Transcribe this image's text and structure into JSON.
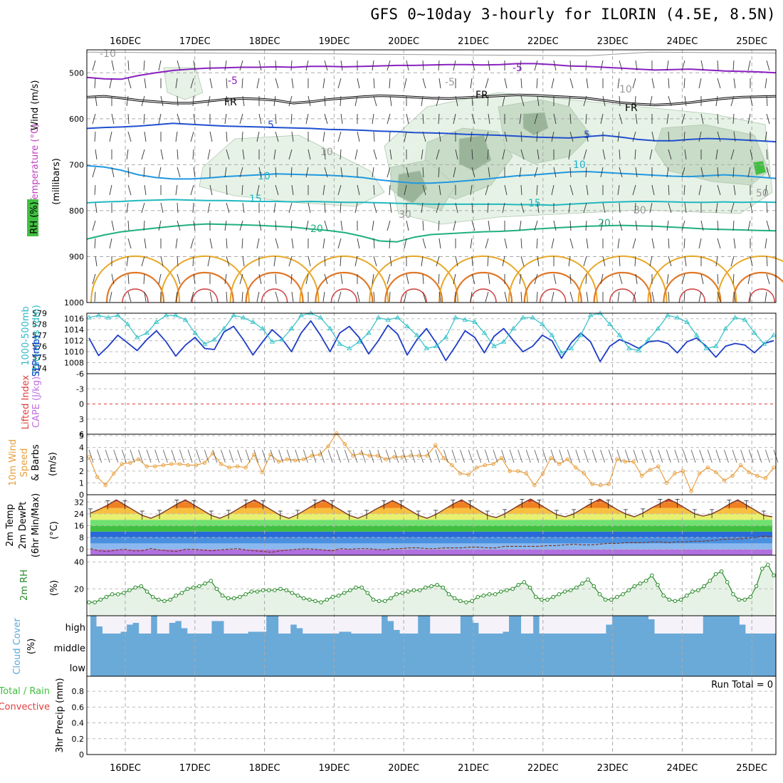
{
  "title": "GFS 0~10day 3-hourly for ILORIN (4.5E, 8.5N)",
  "dates": [
    "16DEC",
    "17DEC",
    "18DEC",
    "19DEC",
    "20DEC",
    "21DEC",
    "22DEC",
    "23DEC",
    "24DEC",
    "25DEC"
  ],
  "panel_labels": {
    "upper_wind": "Wind (m/s)",
    "upper_temp": "Temperature (°C)",
    "upper_units": "(millibars)",
    "upper_rh": "RH (%)",
    "slp": "SLP (mb)",
    "thickness": "Thickness (dm)",
    "thickness2": "1000-500mb",
    "li": "Lifted Index",
    "cape": "CAPE (J/kg)",
    "wind10_a": "10m Wind",
    "wind10_b": "Speed",
    "wind10_c": "& Barbs",
    "wind10_units": "(m/s)",
    "t2m_a": "2m Temp",
    "t2m_b": "2m DewPt",
    "t2m_c": "(6hr Min/Max)",
    "t2m_units": "(°C)",
    "rh2m": "2m RH",
    "rh2m_units": "(%)",
    "cloud": "Cloud Cover",
    "cloud_units": "(%)",
    "cloud_high": "high",
    "cloud_middle": "middle",
    "cloud_low": "low",
    "precip_a": "Total / Rain",
    "precip_b": "Convective",
    "precip_c": "3hr Precip (mm)",
    "run_total": "Run Total = 0"
  },
  "colors": {
    "temperature": "#a020f0",
    "slp": "#1e3cc8",
    "thickness": "#30c0c8",
    "wind10": "#e8a040",
    "rh2m": "#2a8a2a",
    "cloud": "#6aaad8",
    "li": "#e04040",
    "cape": "#c070e0"
  },
  "chart_data": [
    {
      "type": "line",
      "name": "upper-air",
      "xlabel": "",
      "ylabel": "millibars",
      "yticks": [
        500,
        600,
        700,
        800,
        900,
        1000
      ],
      "contour_labels": [
        "-10",
        "-5",
        "-5",
        "FR",
        "FR",
        "FR",
        "-5",
        "5",
        "5",
        "10",
        "10",
        "15",
        "15",
        "20",
        "20",
        "10",
        "10",
        "30",
        "30",
        "50"
      ],
      "series": [
        {
          "name": "-5",
          "mb": [
            510,
            513,
            514,
            506,
            500,
            495,
            492,
            490,
            489,
            488,
            488,
            487,
            488,
            486,
            486,
            487,
            486,
            485,
            484,
            484,
            483,
            482,
            482,
            483,
            482,
            480,
            480,
            482,
            485,
            486,
            488,
            490,
            492,
            494,
            493,
            492,
            494,
            496,
            497,
            498,
            500
          ]
        },
        {
          "name": "FR",
          "mb": [
            553,
            551,
            555,
            560,
            563,
            566,
            566,
            562,
            558,
            556,
            557,
            560,
            566,
            563,
            558,
            555,
            552,
            550,
            551,
            553,
            555,
            556,
            554,
            552,
            550,
            548,
            549,
            551,
            553,
            555,
            560,
            565,
            568,
            570,
            568,
            565,
            560,
            556,
            553,
            552,
            551
          ]
        },
        {
          "name": "5",
          "mb": [
            621,
            619,
            618,
            616,
            613,
            610,
            612,
            614,
            616,
            617,
            618,
            619,
            620,
            621,
            623,
            624,
            625,
            627,
            628,
            630,
            631,
            632,
            634,
            635,
            636,
            638,
            640,
            641,
            642,
            639,
            636,
            640,
            645,
            648,
            648,
            645,
            643,
            644,
            646,
            648,
            650
          ]
        },
        {
          "name": "10",
          "mb": [
            702,
            705,
            712,
            722,
            728,
            731,
            731,
            729,
            726,
            724,
            722,
            720,
            721,
            722,
            723,
            725,
            728,
            733,
            737,
            740,
            740,
            738,
            735,
            732,
            728,
            724,
            722,
            719,
            716,
            715,
            717,
            719,
            721,
            723,
            725,
            726,
            724,
            722,
            724,
            727,
            730
          ]
        },
        {
          "name": "15",
          "mb": [
            783,
            781,
            780,
            778,
            777,
            776,
            777,
            778,
            778,
            779,
            780,
            780,
            781,
            780,
            781,
            782,
            782,
            783,
            784,
            785,
            786,
            786,
            786,
            786,
            786,
            787,
            787,
            788,
            786,
            784,
            782,
            781,
            780,
            780,
            781,
            782,
            782,
            781,
            782,
            781,
            782
          ]
        },
        {
          "name": "20",
          "mb": [
            862,
            853,
            846,
            842,
            838,
            834,
            831,
            829,
            830,
            831,
            832,
            834,
            836,
            840,
            843,
            848,
            856,
            866,
            868,
            858,
            852,
            850,
            848,
            846,
            845,
            843,
            840,
            838,
            836,
            834,
            833,
            832,
            833,
            834,
            836,
            838,
            840,
            841,
            842,
            843,
            844
          ]
        }
      ]
    },
    {
      "type": "line",
      "name": "slp-thickness",
      "xlabel": "",
      "ylabel": "SLP (mb)",
      "ylim": [
        1006,
        1017
      ],
      "yticks": [
        1008,
        1010,
        1012,
        1014,
        1016
      ],
      "y2ticks": [
        574,
        575,
        576,
        577,
        578,
        579
      ],
      "series": [
        {
          "name": "SLP",
          "values": [
            1012.5,
            1009.3,
            1011.0,
            1013.0,
            1011.6,
            1010.2,
            1012.2,
            1013.8,
            1011.8,
            1009.2,
            1011.2,
            1012.6,
            1010.6,
            1010.4,
            1013.6,
            1014.6,
            1012.2,
            1009.4,
            1011.8,
            1014.0,
            1012.4,
            1010.0,
            1013.4,
            1015.6,
            1013.0,
            1010.0,
            1013.4,
            1014.6,
            1012.6,
            1009.6,
            1012.0,
            1014.8,
            1013.2,
            1009.4,
            1012.2,
            1014.2,
            1011.6,
            1008.4,
            1011.0,
            1013.8,
            1012.6,
            1009.8,
            1012.8,
            1014.2,
            1012.0,
            1010.0,
            1011.0,
            1013.0,
            1012.0,
            1008.8,
            1011.6,
            1013.4,
            1011.8,
            1008.2,
            1011.0,
            1012.2,
            1011.5,
            1010.6,
            1011.8,
            1012.0,
            1011.5,
            1009.8,
            1011.8,
            1012.5,
            1011.0,
            1009.0,
            1011.0,
            1011.5,
            1011.2,
            1009.8,
            1011.5,
            1012.0
          ]
        },
        {
          "name": "Thickness",
          "values": [
            578.6,
            578.8,
            578.6,
            578.8,
            578.0,
            576.8,
            577.2,
            578.2,
            578.8,
            578.8,
            578.4,
            577.2,
            576.2,
            576.6,
            577.6,
            578.8,
            578.6,
            578.2,
            577.6,
            576.4,
            576.6,
            577.6,
            578.8,
            579.0,
            578.6,
            577.6,
            576.2,
            575.8,
            576.4,
            577.2,
            578.6,
            578.4,
            578.6,
            577.8,
            577.0,
            575.8,
            576.0,
            576.8,
            578.6,
            578.4,
            578.2,
            577.2,
            576.0,
            576.4,
            577.6,
            578.6,
            578.6,
            578.0,
            577.0,
            575.4,
            575.8,
            577.0,
            578.8,
            579.0,
            578.0,
            577.0,
            575.8,
            575.6,
            576.6,
            577.6,
            578.8,
            578.6,
            578.2,
            577.0,
            575.8,
            576.0,
            577.6,
            578.6,
            578.4,
            577.2,
            576.2,
            577.0
          ]
        }
      ]
    },
    {
      "type": "line",
      "name": "lifted-index-cape",
      "xlabel": "",
      "ylabel": "Lifted Index",
      "ylim": [
        6,
        -6
      ],
      "yticks": [
        -6,
        -3,
        0,
        3,
        6
      ],
      "y2ticks": [],
      "series": [
        {
          "name": "Lifted Index",
          "values": []
        }
      ]
    },
    {
      "type": "line",
      "name": "10m-wind",
      "xlabel": "",
      "ylabel": "(m/s)",
      "ylim": [
        0,
        5
      ],
      "yticks": [
        0,
        1,
        2,
        3,
        4,
        5
      ],
      "series": [
        {
          "name": "10m Wind Speed",
          "values": [
            3.2,
            1.5,
            0.8,
            1.8,
            2.6,
            2.7,
            3.0,
            2.4,
            2.4,
            2.5,
            2.6,
            2.6,
            2.5,
            2.5,
            2.7,
            3.5,
            2.6,
            2.3,
            2.4,
            2.3,
            3.4,
            1.9,
            3.4,
            2.8,
            3.0,
            2.9,
            3.0,
            3.3,
            3.4,
            4.1,
            5.2,
            4.3,
            3.3,
            3.5,
            3.3,
            3.3,
            3.0,
            3.2,
            3.2,
            3.3,
            3.3,
            3.3,
            4.2,
            3.1,
            2.5,
            1.8,
            1.7,
            2.3,
            2.5,
            2.6,
            3.1,
            2.0,
            2.0,
            1.8,
            0.8,
            1.8,
            3.1,
            2.6,
            3.0,
            2.3,
            1.8,
            0.9,
            0.8,
            0.9,
            3.0,
            2.8,
            2.8,
            1.6,
            2.1,
            2.4,
            1.0,
            1.8,
            2.0,
            0.3,
            1.8,
            2.3,
            1.9,
            1.2,
            1.6,
            2.5,
            1.9,
            1.6,
            1.4,
            2.3
          ]
        }
      ]
    },
    {
      "type": "area",
      "name": "2m-temperature",
      "xlabel": "",
      "ylabel": "(°C)",
      "ylim": [
        -4,
        36
      ],
      "yticks": [
        0,
        8,
        16,
        24,
        32
      ],
      "series": [
        {
          "name": "2m Temp",
          "values": [
            24.5,
            27,
            30,
            33.5,
            30,
            26.5,
            23,
            21,
            23.5,
            27,
            30.5,
            33.5,
            30,
            26.5,
            23,
            21,
            23.5,
            27,
            30.5,
            33.5,
            30,
            26.5,
            23,
            21,
            23.5,
            27,
            30.5,
            33.5,
            30,
            26.5,
            23,
            21,
            23.5,
            27,
            30,
            33,
            30,
            26.5,
            23,
            21,
            23.5,
            27,
            30.5,
            33.5,
            30,
            26.5,
            23,
            21.5,
            24,
            27.5,
            31,
            34,
            30.5,
            27,
            23.5,
            22,
            24,
            27.5,
            31,
            34,
            30.5,
            27,
            24,
            22,
            24.5,
            28,
            31,
            34,
            31,
            27.5,
            24,
            22.5,
            24,
            27,
            30.5,
            33.5,
            30,
            26.5,
            23,
            22
          ]
        },
        {
          "name": "2m DewPt",
          "values": [
            0.5,
            -1,
            -1.5,
            -0.5,
            0,
            -1,
            -1,
            0.5,
            -0.5,
            -1,
            -1.5,
            0,
            0,
            -0.5,
            -1,
            -0.5,
            0,
            0.5,
            -0.5,
            -1,
            -1.5,
            -2,
            -1,
            -0.5,
            0,
            0.5,
            0,
            -0.5,
            -1,
            0.5,
            0,
            0.5,
            0.5,
            0,
            -0.5,
            0.5,
            0.5,
            1,
            1,
            0.5,
            0.5,
            1,
            1,
            1,
            1.5,
            1.5,
            1,
            1,
            2,
            2,
            2,
            2,
            2,
            2.5,
            2.5,
            3,
            3.5,
            3,
            3,
            3.5,
            4,
            4,
            4.5,
            4.5,
            4.5,
            5,
            5,
            4.5,
            5,
            5,
            5.5,
            5.5,
            6,
            6.5,
            7,
            7,
            7.5,
            8,
            9,
            8.5
          ]
        }
      ]
    },
    {
      "type": "area",
      "name": "2m-rh",
      "xlabel": "",
      "ylabel": "(%)",
      "ylim": [
        0,
        44
      ],
      "yticks": [
        20,
        40
      ],
      "series": [
        {
          "name": "2m RH",
          "values": [
            10,
            10,
            12,
            14,
            16,
            16,
            17,
            19,
            21,
            22,
            18,
            14,
            12,
            11,
            12,
            15,
            17,
            20,
            21,
            22,
            24,
            26,
            20,
            15,
            13,
            13,
            14,
            16,
            18,
            18,
            19,
            19,
            19,
            20,
            19,
            17,
            15,
            13,
            12,
            11,
            10,
            12,
            14,
            15,
            17,
            19,
            21,
            21,
            17,
            12,
            11,
            11,
            13,
            16,
            17,
            18,
            19,
            19,
            21,
            22,
            23,
            21,
            16,
            13,
            11,
            10,
            11,
            14,
            15,
            16,
            16,
            18,
            19,
            20,
            23,
            25,
            21,
            14,
            12,
            12,
            14,
            16,
            18,
            19,
            21,
            24,
            27,
            22,
            16,
            12,
            12,
            14,
            16,
            19,
            22,
            24,
            26,
            30,
            23,
            15,
            12,
            11,
            12,
            15,
            18,
            19,
            22,
            26,
            31,
            33,
            25,
            16,
            12,
            12,
            14,
            22,
            35,
            38,
            30
          ]
        }
      ]
    },
    {
      "type": "bar",
      "name": "cloud-cover",
      "xlabel": "",
      "ylabel": "(%)",
      "ylim": [
        0,
        100
      ],
      "series": [
        {
          "name": "high",
          "values": [
            100,
            40,
            0,
            0,
            0,
            10,
            50,
            60,
            0,
            0,
            100,
            0,
            0,
            60,
            70,
            30,
            0,
            0,
            0,
            0,
            70,
            70,
            0,
            0,
            0,
            0,
            10,
            10,
            10,
            100,
            100,
            0,
            0,
            50,
            30,
            0,
            0,
            0,
            0,
            0,
            0,
            10,
            10,
            0,
            0,
            0,
            0,
            0,
            100,
            70,
            20,
            0,
            0,
            0,
            100,
            100,
            0,
            0,
            0,
            0,
            0,
            100,
            100,
            60,
            0,
            0,
            0,
            0,
            10,
            100,
            100,
            0,
            0,
            100,
            0,
            0,
            0,
            0,
            0,
            0,
            0,
            0,
            0,
            0,
            0,
            50,
            100,
            100,
            100,
            100,
            100,
            100,
            80,
            0,
            0,
            0,
            0,
            0,
            0,
            0,
            0,
            100,
            100,
            100,
            100,
            100,
            100,
            50,
            0,
            0,
            0,
            0,
            0
          ]
        },
        {
          "name": "middle",
          "values": []
        },
        {
          "name": "low",
          "values": []
        }
      ]
    },
    {
      "type": "bar",
      "name": "3hr-precip",
      "xlabel": "",
      "ylabel": "3hr Precip (mm)",
      "ylim": [
        0,
        0.9
      ],
      "yticks": [
        0,
        0.2,
        0.4,
        0.6,
        0.8
      ],
      "ytick_labels": [
        "0",
        "0.2",
        "0.4",
        "0.6",
        "0.8"
      ],
      "series": [
        {
          "name": "Total / Rain",
          "values": []
        }
      ]
    }
  ]
}
